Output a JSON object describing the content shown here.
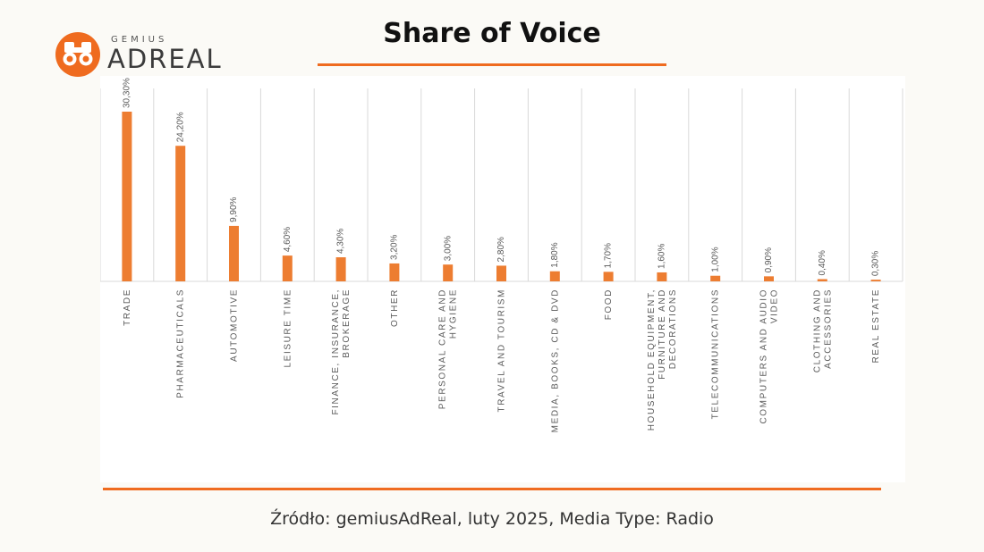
{
  "header": {
    "logo_small": "GEMIUS",
    "logo_big": "ADREAL",
    "title": "Share of Voice"
  },
  "footer": {
    "source": "Źródło: gemiusAdReal, luty 2025, Media Type: Radio"
  },
  "colors": {
    "accent": "#ef6b1f",
    "bar": "#ed7d31",
    "grid": "#d9d9d9",
    "label": "#595959"
  },
  "chart_data": {
    "type": "bar",
    "title": "Share of Voice",
    "categories": [
      "TRADE",
      "PHARMACEUTICALS",
      "AUTOMOTIVE",
      "LEISURE TIME",
      "FINANCE, INSURANCE, BROKERAGE",
      "OTHER",
      "PERSONAL CARE AND HYGIENE",
      "TRAVEL AND TOURISM",
      "MEDIA, BOOKS, CD & DVD",
      "FOOD",
      "HOUSEHOLD EQUIPMENT, FURNITURE AND DECORATIONS",
      "TELECOMMUNICATIONS",
      "COMPUTERS AND AUDIO VIDEO",
      "CLOTHING AND ACCESSORIES",
      "REAL ESTATE"
    ],
    "values": [
      30.3,
      24.2,
      9.9,
      4.6,
      4.3,
      3.2,
      3.0,
      2.8,
      1.8,
      1.7,
      1.6,
      1.0,
      0.9,
      0.4,
      0.3
    ],
    "data_labels": [
      "30,30%",
      "24,20%",
      "9,90%",
      "4,60%",
      "4,30%",
      "3,20%",
      "3,00%",
      "2,80%",
      "1,80%",
      "1,70%",
      "1,60%",
      "1,00%",
      "0,90%",
      "0,40%",
      "0,30%"
    ],
    "ylim": [
      0,
      30.3
    ],
    "grid": "vertical",
    "legend": "none"
  }
}
